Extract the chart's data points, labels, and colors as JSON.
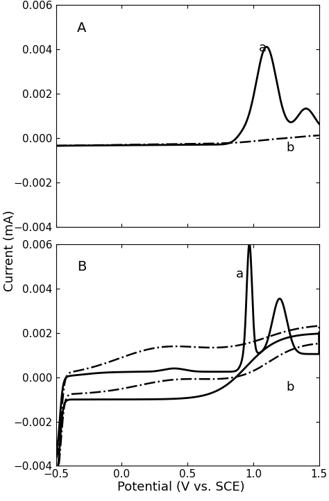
{
  "xlim": [
    -0.5,
    1.5
  ],
  "ylim": [
    -0.004,
    0.006
  ],
  "xticks": [
    -0.5,
    0,
    0.5,
    1,
    1.5
  ],
  "yticks": [
    -0.004,
    -0.002,
    0,
    0.002,
    0.004,
    0.006
  ],
  "xlabel": "Potential (V vs. SCE)",
  "ylabel": "Current (mA)",
  "panel_A_label": "A",
  "panel_B_label": "B",
  "background_color": "#ffffff",
  "label_fontsize": 13,
  "tick_fontsize": 11,
  "linewidth_solid": 2.0,
  "linewidth_dashdot": 1.8
}
